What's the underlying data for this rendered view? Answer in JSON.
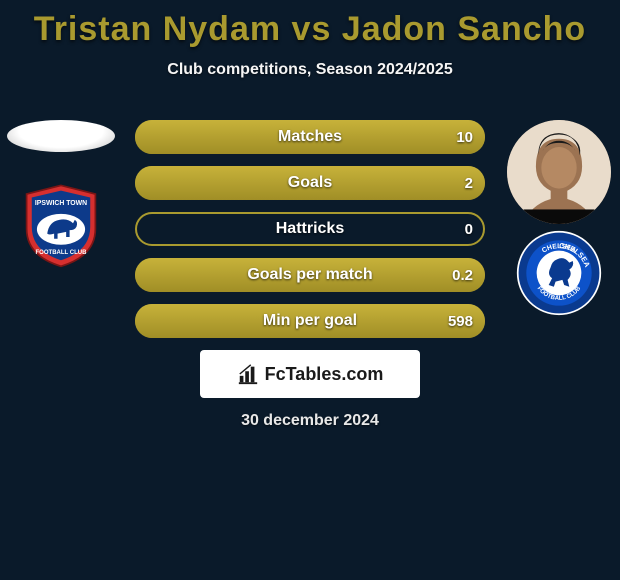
{
  "title": "Tristan Nydam vs Jadon Sancho",
  "subtitle": "Club competitions, Season 2024/2025",
  "date": "30 december 2024",
  "brand": "FcTables.com",
  "colors": {
    "background": "#0a1a2a",
    "accent": "#a99a2f",
    "bar_fill_top": "#c7b23a",
    "bar_fill_bottom": "#a08e26",
    "text": "#ffffff"
  },
  "player_left": {
    "name": "Tristan Nydam",
    "club": "Ipswich Town",
    "club_colors": {
      "primary": "#d62f2f",
      "secondary": "#0d3a8a",
      "horse": "#ffffff"
    }
  },
  "player_right": {
    "name": "Jadon Sancho",
    "club": "Chelsea",
    "club_colors": {
      "primary": "#0a3a8f",
      "ring": "#0d52c9",
      "center": "#ffffff"
    }
  },
  "bars": [
    {
      "label": "Matches",
      "left": "",
      "right": "10",
      "fill_left_pct": 0,
      "fill_right_pct": 100
    },
    {
      "label": "Goals",
      "left": "",
      "right": "2",
      "fill_left_pct": 0,
      "fill_right_pct": 100
    },
    {
      "label": "Hattricks",
      "left": "",
      "right": "0",
      "fill_left_pct": 0,
      "fill_right_pct": 0
    },
    {
      "label": "Goals per match",
      "left": "",
      "right": "0.2",
      "fill_left_pct": 0,
      "fill_right_pct": 100
    },
    {
      "label": "Min per goal",
      "left": "",
      "right": "598",
      "fill_left_pct": 0,
      "fill_right_pct": 100
    }
  ]
}
